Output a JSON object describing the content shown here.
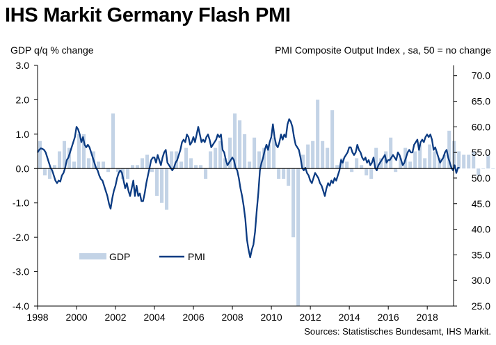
{
  "title": "IHS Markit Germany Flash PMI",
  "left_axis_label": "GDP q/q % change",
  "right_axis_label": "PMI Composite  Output  Index , sa, 50 = no change",
  "source": "Sources: Statistisches Bundesamt, IHS Markit.",
  "colors": {
    "gdp_bar": "#c3d3e6",
    "pmi_line": "#0b3b82",
    "axis": "#000000"
  },
  "chart_data": {
    "type": "bar+line",
    "title": "IHS Markit Germany Flash PMI",
    "x_ticks": [
      "1998",
      "2000",
      "2002",
      "2004",
      "2006",
      "2008",
      "2010",
      "2012",
      "2014",
      "2016",
      "2018"
    ],
    "y_left": {
      "label": "GDP q/q % change",
      "range": [
        -4.0,
        3.0
      ],
      "ticks": [
        "3.0",
        "2.0",
        "1.0",
        "0.0",
        "-1.0",
        "-2.0",
        "-3.0",
        "-4.0"
      ]
    },
    "y_right": {
      "label": "PMI Composite  Output  Index , sa, 50 = no change",
      "range": [
        25.0,
        72.0
      ],
      "ticks": [
        "70.0",
        "65.0",
        "60.0",
        "55.0",
        "50.0",
        "45.0",
        "40.0",
        "35.0",
        "30.0",
        "25.0"
      ]
    },
    "legend": {
      "position": "center-left",
      "items": [
        "GDP",
        "PMI"
      ]
    },
    "series": [
      {
        "name": "GDP",
        "type": "bar",
        "start_year": 1998.0,
        "step": 0.25,
        "values": [
          0.8,
          -0.2,
          -0.3,
          0.1,
          0.5,
          0.8,
          0.6,
          0.2,
          1.0,
          1.0,
          0.3,
          0.5,
          0.2,
          0.2,
          -0.1,
          1.6,
          -0.1,
          -0.3,
          -0.3,
          0.1,
          0.1,
          0.3,
          0.4,
          -0.1,
          -0.8,
          -1.0,
          -1.2,
          0.5,
          0.5,
          0.2,
          0.6,
          0.3,
          0.1,
          0.1,
          -0.3,
          0.5,
          0.6,
          0.8,
          0.3,
          0.9,
          1.6,
          1.4,
          1.0,
          0.2,
          0.9,
          0.5,
          0.6,
          0.7,
          0.9,
          -0.3,
          -0.3,
          -0.5,
          -2.0,
          -4.0,
          0.4,
          0.7,
          0.8,
          2.0,
          0.8,
          0.6,
          1.7,
          0.1,
          0.3,
          0.2,
          -0.1,
          0.3,
          0.1,
          -0.2,
          -0.3,
          0.6,
          0.3,
          0.5,
          0.9,
          -0.1,
          0.3,
          0.6,
          0.2,
          0.5,
          0.7,
          0.3,
          0.7,
          0.5,
          0.3,
          0.4,
          1.1,
          0.8,
          0.5,
          0.4,
          0.4,
          0.5,
          -0.2,
          0.0,
          0.4,
          0.0,
          0.0
        ]
      },
      {
        "name": "PMI",
        "type": "line",
        "start_year": 1998.0,
        "step": 0.0833,
        "values": [
          55.0,
          55.5,
          55.8,
          55.7,
          55.5,
          55.0,
          54.0,
          53.0,
          52.0,
          51.5,
          50.5,
          49.5,
          49.0,
          49.5,
          49.3,
          50.5,
          51.0,
          52.0,
          53.5,
          54.0,
          55.0,
          56.0,
          57.0,
          58.0,
          60.0,
          59.5,
          58.5,
          57.0,
          58.0,
          56.5,
          56.0,
          56.5,
          56.0,
          55.0,
          54.0,
          53.0,
          52.0,
          51.5,
          50.5,
          49.8,
          49.5,
          48.5,
          47.5,
          46.5,
          45.0,
          44.0,
          46.0,
          47.5,
          48.5,
          50.0,
          51.0,
          51.5,
          51.0,
          49.5,
          48.0,
          49.0,
          47.5,
          46.5,
          48.0,
          49.5,
          46.5,
          48.5,
          46.5,
          47.0,
          45.5,
          45.5,
          47.0,
          49.0,
          50.5,
          52.0,
          53.5,
          54.0,
          54.0,
          53.0,
          54.5,
          53.5,
          52.5,
          54.0,
          55.0,
          55.5,
          53.0,
          52.5,
          52.0,
          51.5,
          52.0,
          53.0,
          53.5,
          54.5,
          55.5,
          57.0,
          57.5,
          57.0,
          58.5,
          58.0,
          56.5,
          57.0,
          58.0,
          57.0,
          58.5,
          60.0,
          58.5,
          57.0,
          57.5,
          57.0,
          58.0,
          58.5,
          57.5,
          56.0,
          56.5,
          57.0,
          57.5,
          58.5,
          58.0,
          58.5,
          55.5,
          55.0,
          53.5,
          52.5,
          53.0,
          53.5,
          54.0,
          53.5,
          52.0,
          51.5,
          50.0,
          48.0,
          46.5,
          44.5,
          42.0,
          38.0,
          36.0,
          34.5,
          36.0,
          37.0,
          39.5,
          43.5,
          47.0,
          51.5,
          53.0,
          54.0,
          55.5,
          56.5,
          55.5,
          57.0,
          58.0,
          60.5,
          58.0,
          56.5,
          56.0,
          57.0,
          58.5,
          57.5,
          58.5,
          58.0,
          60.5,
          61.5,
          61.0,
          60.0,
          58.0,
          56.5,
          56.0,
          55.5,
          54.0,
          52.0,
          51.5,
          52.0,
          51.0,
          50.5,
          49.5,
          49.0,
          50.0,
          51.0,
          50.5,
          50.0,
          49.0,
          48.5,
          47.5,
          46.5,
          48.0,
          49.0,
          48.5,
          49.5,
          49.0,
          50.0,
          49.5,
          50.5,
          51.5,
          53.5,
          53.0,
          54.0,
          54.5,
          55.0,
          56.0,
          56.0,
          55.0,
          54.5,
          55.0,
          56.5,
          55.5,
          55.0,
          54.0,
          53.5,
          54.0,
          53.0,
          53.5,
          52.5,
          53.0,
          54.0,
          52.0,
          51.5,
          52.5,
          53.0,
          53.5,
          54.0,
          54.5,
          53.0,
          53.5,
          53.5,
          54.0,
          54.5,
          54.0,
          53.5,
          55.0,
          54.5,
          53.5,
          52.5,
          53.0,
          54.0,
          55.0,
          55.5,
          55.0,
          55.0,
          56.5,
          57.0,
          57.5,
          55.5,
          57.0,
          57.5,
          57.0,
          58.0,
          58.5,
          58.0,
          58.5,
          57.5,
          55.5,
          56.0,
          55.0,
          54.0,
          53.0,
          53.5,
          54.0,
          55.0,
          55.5,
          54.0,
          53.0,
          52.0,
          51.5,
          52.5,
          51.0,
          52.0,
          52.0
        ]
      }
    ]
  }
}
